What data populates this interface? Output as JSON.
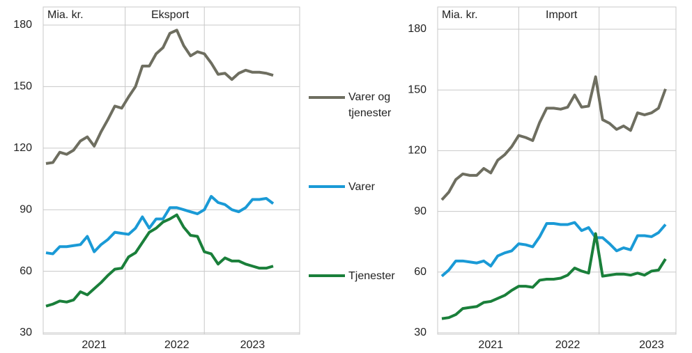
{
  "chart_data": [
    {
      "type": "line",
      "title": "Eksport",
      "ylabel": "Mia. kr.",
      "categories": [
        null,
        null,
        null,
        null,
        null,
        null,
        null,
        "2021",
        null,
        null,
        null,
        null,
        null,
        null,
        null,
        null,
        null,
        null,
        null,
        "2022",
        null,
        null,
        null,
        null,
        null,
        null,
        null,
        null,
        null,
        null,
        "2023",
        null,
        null,
        null
      ],
      "ylim": [
        30,
        180
      ],
      "yticks": [
        30,
        60,
        90,
        120,
        150,
        180
      ],
      "grid": true,
      "series": [
        {
          "name": "Varer og tjenester",
          "color": "#6e6e60",
          "values": [
            112.5,
            113,
            118,
            117,
            119,
            123.5,
            125.5,
            121,
            128,
            134,
            140.5,
            139.5,
            145,
            150,
            160,
            160,
            166,
            169,
            176,
            177.5,
            170,
            165,
            167,
            166,
            161.5,
            156,
            156.5,
            153.5,
            156.5,
            158,
            157,
            157,
            156.5,
            155.5
          ]
        },
        {
          "name": "Varer",
          "color": "#1a9ad6",
          "values": [
            69,
            68.5,
            72,
            72,
            72.5,
            73,
            77,
            69.5,
            73,
            75.5,
            79,
            78.5,
            78,
            81,
            86.5,
            81,
            85.5,
            85.5,
            91,
            91,
            90,
            89,
            88,
            90,
            96.5,
            93.5,
            92.5,
            90,
            89,
            91,
            95,
            95,
            95.5,
            93
          ]
        },
        {
          "name": "Tjenester",
          "color": "#1a7f3a",
          "values": [
            43,
            44,
            45.5,
            45,
            46,
            50,
            48.5,
            51.5,
            54.5,
            58,
            61,
            61.5,
            67,
            69,
            74,
            79,
            81,
            84,
            85.5,
            87.5,
            81.5,
            77.5,
            77,
            69.5,
            68.5,
            63.5,
            66.5,
            65,
            65,
            63.5,
            62.5,
            61.5,
            61.5,
            62.5
          ]
        }
      ]
    },
    {
      "type": "line",
      "title": "Import",
      "ylabel": "Mia. kr.",
      "categories": [
        null,
        null,
        null,
        null,
        null,
        null,
        null,
        "2021",
        null,
        null,
        null,
        null,
        null,
        null,
        null,
        null,
        null,
        null,
        "2022",
        null,
        null,
        null,
        null,
        null,
        null,
        null,
        null,
        null,
        null,
        null,
        "2023",
        null,
        null
      ],
      "ylim": [
        30,
        180
      ],
      "yticks": [
        30,
        60,
        90,
        120,
        150,
        180
      ],
      "grid": true,
      "series": [
        {
          "name": "Varer og tjenester",
          "color": "#6e6e60",
          "values": [
            95.7,
            99.5,
            105.7,
            108.5,
            107.8,
            107.8,
            111.2,
            109,
            115.3,
            118,
            122,
            127.5,
            126.5,
            125,
            134,
            141,
            141,
            140.5,
            141.5,
            147.5,
            141.5,
            142,
            156.5,
            135.3,
            133.5,
            130.5,
            132.2,
            130,
            138.7,
            137.7,
            138.7,
            141,
            150.5
          ]
        },
        {
          "name": "Varer",
          "color": "#1a9ad6",
          "values": [
            58,
            61,
            65.5,
            65.5,
            65,
            64.5,
            65.5,
            63,
            68,
            69.5,
            70.5,
            74,
            73.5,
            72.5,
            77.5,
            84,
            84,
            83.5,
            83.5,
            84.5,
            80.5,
            82,
            77,
            77,
            74,
            70.5,
            72,
            71,
            78,
            78,
            77.5,
            79.5,
            83.5
          ]
        },
        {
          "name": "Tjenester",
          "color": "#1a7f3a",
          "values": [
            37,
            37.5,
            39,
            42,
            42.5,
            43,
            45,
            45.5,
            47,
            48.5,
            51,
            53,
            53,
            52.5,
            56,
            56.5,
            56.5,
            57,
            58.5,
            62,
            60.5,
            59.5,
            79,
            58,
            58.5,
            59,
            59,
            58.5,
            59.5,
            58.5,
            60.5,
            61,
            66.5
          ]
        }
      ]
    }
  ]
}
